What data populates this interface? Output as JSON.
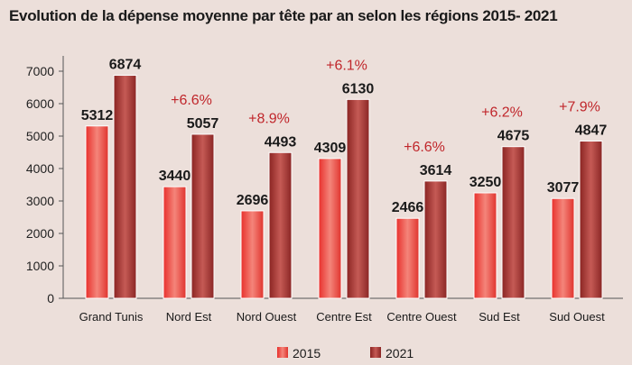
{
  "chart_data": {
    "type": "bar",
    "title": "Evolution de la dépense moyenne par tête par an selon les régions 2015- 2021",
    "categories": [
      "Grand Tunis",
      "Nord Est",
      "Nord Ouest",
      "Centre Est",
      "Centre Ouest",
      "Sud Est",
      "Sud Ouest"
    ],
    "series": [
      {
        "name": "2015",
        "values": [
          5312,
          3440,
          2696,
          4309,
          2466,
          3250,
          3077
        ],
        "color": "#e8403a"
      },
      {
        "name": "2021",
        "values": [
          6874,
          5057,
          4493,
          6130,
          3614,
          4675,
          4847
        ],
        "color": "#9e2f2c"
      }
    ],
    "annotations": [
      "",
      "+6.6%",
      "+8.9%",
      "+6.1%",
      "+6.6%",
      "+6.2%",
      "+7.9%"
    ],
    "yticks": [
      0,
      1000,
      2000,
      3000,
      4000,
      5000,
      6000,
      7000
    ],
    "ylim": [
      0,
      7300
    ],
    "xlabel": "",
    "ylabel": "",
    "legend_position": "bottom",
    "grid": false
  }
}
